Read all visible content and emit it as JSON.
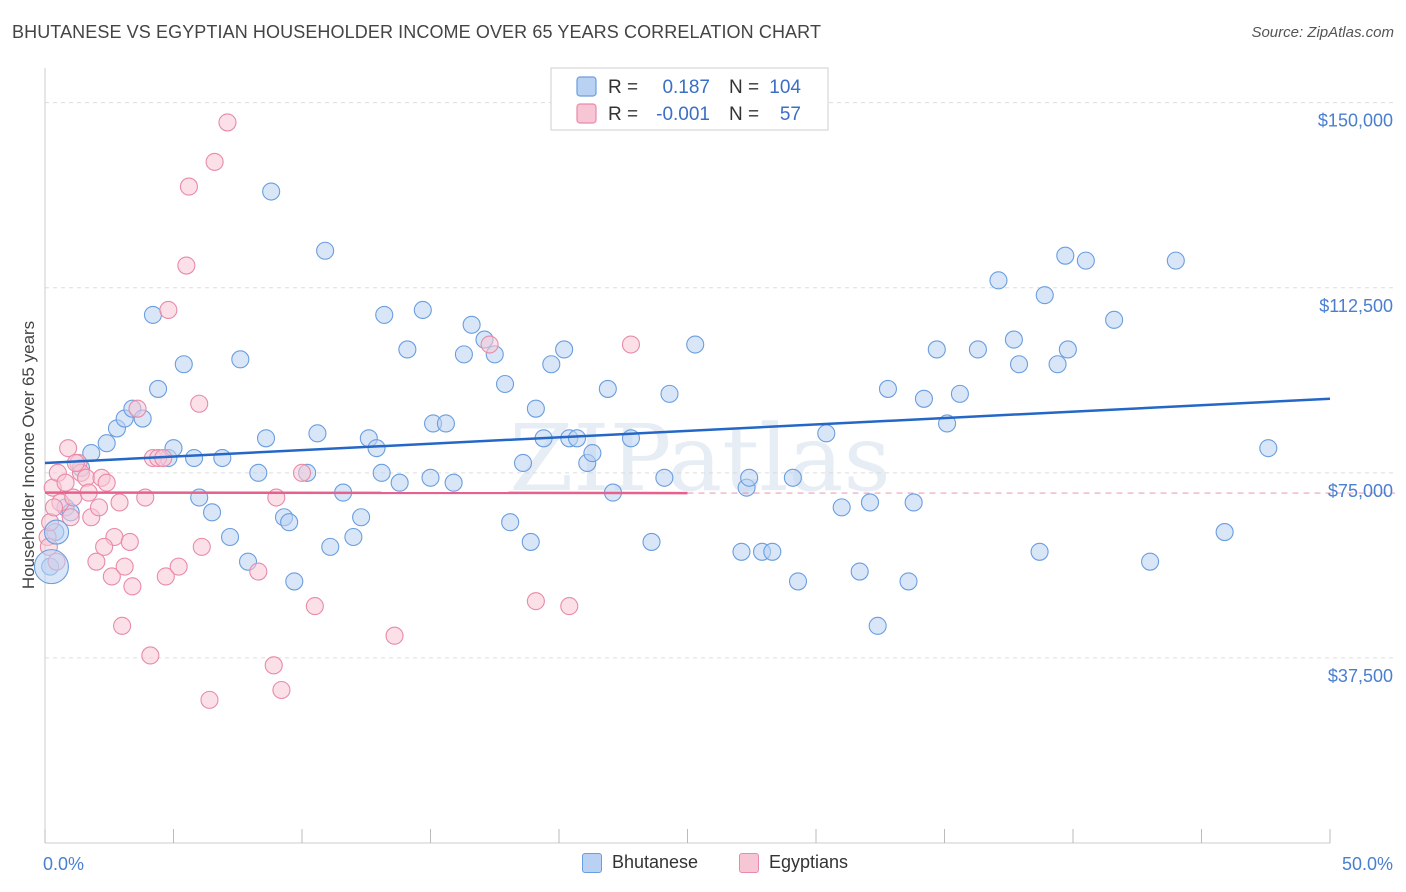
{
  "title": "BHUTANESE VS EGYPTIAN HOUSEHOLDER INCOME OVER 65 YEARS CORRELATION CHART",
  "source": "Source: ZipAtlas.com",
  "watermark": "ZIPatlas",
  "colors": {
    "blue": "#6a9ee0",
    "blue_fill": "#b9d2f3",
    "blue_line": "#2467c6",
    "pink": "#e98aa8",
    "pink_fill": "#f7c6d5",
    "pink_line": "#e5628e",
    "axis_text": "#4a7fd0",
    "grid": "#dddddd"
  },
  "legend": {
    "rows": [
      {
        "r_label": "R =",
        "r_value": "0.187",
        "n_label": "N =",
        "n_value": "104"
      },
      {
        "r_label": "R =",
        "r_value": "-0.001",
        "n_label": "N =",
        "n_value": "57"
      }
    ]
  },
  "bottom_legend": [
    "Bhutanese",
    "Egyptians"
  ],
  "chart_data": {
    "type": "scatter",
    "title": "BHUTANESE VS EGYPTIAN HOUSEHOLDER INCOME OVER 65 YEARS CORRELATION CHART",
    "xlabel": "",
    "ylabel": "Householder Income Over 65 years",
    "xlim": [
      0,
      50
    ],
    "ylim": [
      0,
      155000
    ],
    "x_tick_labels": [
      "0.0%",
      "50.0%"
    ],
    "y_ticks": [
      37500,
      75000,
      112500,
      150000
    ],
    "y_tick_labels": [
      "$37,500",
      "$75,000",
      "$112,500",
      "$150,000"
    ],
    "legend_position": "top-center",
    "grid": true,
    "series": [
      {
        "name": "Bhutanese",
        "color": "#6a9ee0",
        "trend": {
          "x": [
            0,
            50
          ],
          "y": [
            77000,
            90000
          ]
        },
        "points": [
          [
            0.2,
            56000
          ],
          [
            0.4,
            63000
          ],
          [
            0.8,
            68000
          ],
          [
            1.0,
            67000
          ],
          [
            1.4,
            76000
          ],
          [
            1.8,
            79000
          ],
          [
            2.4,
            81000
          ],
          [
            2.8,
            84000
          ],
          [
            3.1,
            86000
          ],
          [
            3.4,
            88000
          ],
          [
            3.8,
            86000
          ],
          [
            4.2,
            107000
          ],
          [
            4.4,
            92000
          ],
          [
            4.8,
            78000
          ],
          [
            5.0,
            80000
          ],
          [
            5.4,
            97000
          ],
          [
            5.8,
            78000
          ],
          [
            6.0,
            70000
          ],
          [
            6.5,
            67000
          ],
          [
            6.9,
            78000
          ],
          [
            7.2,
            62000
          ],
          [
            7.6,
            98000
          ],
          [
            7.9,
            57000
          ],
          [
            8.3,
            75000
          ],
          [
            8.6,
            82000
          ],
          [
            8.8,
            132000
          ],
          [
            9.3,
            66000
          ],
          [
            9.5,
            65000
          ],
          [
            9.7,
            53000
          ],
          [
            10.2,
            75000
          ],
          [
            10.6,
            83000
          ],
          [
            10.9,
            120000
          ],
          [
            11.1,
            60000
          ],
          [
            11.6,
            71000
          ],
          [
            12.0,
            62000
          ],
          [
            12.3,
            66000
          ],
          [
            12.6,
            82000
          ],
          [
            12.9,
            80000
          ],
          [
            13.1,
            75000
          ],
          [
            13.2,
            107000
          ],
          [
            13.8,
            73000
          ],
          [
            14.1,
            100000
          ],
          [
            14.7,
            108000
          ],
          [
            15.0,
            74000
          ],
          [
            15.1,
            85000
          ],
          [
            15.6,
            85000
          ],
          [
            15.9,
            73000
          ],
          [
            16.3,
            99000
          ],
          [
            16.6,
            105000
          ],
          [
            17.1,
            102000
          ],
          [
            17.5,
            99000
          ],
          [
            17.9,
            93000
          ],
          [
            18.1,
            65000
          ],
          [
            18.6,
            77000
          ],
          [
            18.9,
            61000
          ],
          [
            19.1,
            88000
          ],
          [
            19.4,
            82000
          ],
          [
            19.7,
            97000
          ],
          [
            20.2,
            100000
          ],
          [
            20.4,
            82000
          ],
          [
            20.7,
            82000
          ],
          [
            21.1,
            77000
          ],
          [
            21.3,
            79000
          ],
          [
            21.9,
            92000
          ],
          [
            22.1,
            71000
          ],
          [
            22.8,
            82000
          ],
          [
            23.6,
            61000
          ],
          [
            24.1,
            74000
          ],
          [
            24.3,
            91000
          ],
          [
            25.3,
            101000
          ],
          [
            27.1,
            59000
          ],
          [
            27.3,
            72000
          ],
          [
            27.4,
            74000
          ],
          [
            27.9,
            59000
          ],
          [
            28.3,
            59000
          ],
          [
            29.1,
            74000
          ],
          [
            29.3,
            53000
          ],
          [
            30.4,
            83000
          ],
          [
            31.0,
            68000
          ],
          [
            31.7,
            55000
          ],
          [
            32.1,
            69000
          ],
          [
            32.4,
            44000
          ],
          [
            32.8,
            92000
          ],
          [
            33.6,
            53000
          ],
          [
            33.8,
            69000
          ],
          [
            34.2,
            90000
          ],
          [
            34.7,
            100000
          ],
          [
            35.1,
            85000
          ],
          [
            35.6,
            91000
          ],
          [
            36.3,
            100000
          ],
          [
            37.1,
            114000
          ],
          [
            37.7,
            102000
          ],
          [
            37.9,
            97000
          ],
          [
            38.7,
            59000
          ],
          [
            38.9,
            111000
          ],
          [
            39.4,
            97000
          ],
          [
            39.7,
            119000
          ],
          [
            39.8,
            100000
          ],
          [
            40.5,
            118000
          ],
          [
            41.6,
            106000
          ],
          [
            44.0,
            118000
          ],
          [
            43.0,
            57000
          ],
          [
            45.9,
            63000
          ],
          [
            47.6,
            80000
          ]
        ]
      },
      {
        "name": "Egyptians",
        "color": "#e98aa8",
        "trend": {
          "x": [
            0,
            25
          ],
          "y": [
            71000,
            70900
          ]
        },
        "points": [
          [
            0.1,
            62000
          ],
          [
            0.2,
            65000
          ],
          [
            0.3,
            72000
          ],
          [
            0.5,
            75000
          ],
          [
            0.6,
            69000
          ],
          [
            0.8,
            73000
          ],
          [
            0.9,
            80000
          ],
          [
            1.0,
            66000
          ],
          [
            1.1,
            70000
          ],
          [
            1.3,
            77000
          ],
          [
            1.4,
            75000
          ],
          [
            1.6,
            74000
          ],
          [
            1.7,
            71000
          ],
          [
            1.8,
            66000
          ],
          [
            2.0,
            57000
          ],
          [
            2.1,
            68000
          ],
          [
            2.2,
            74000
          ],
          [
            2.4,
            73000
          ],
          [
            2.6,
            54000
          ],
          [
            2.7,
            62000
          ],
          [
            2.9,
            69000
          ],
          [
            3.0,
            44000
          ],
          [
            3.1,
            56000
          ],
          [
            3.3,
            61000
          ],
          [
            3.4,
            52000
          ],
          [
            3.6,
            88000
          ],
          [
            3.9,
            70000
          ],
          [
            4.1,
            38000
          ],
          [
            4.2,
            78000
          ],
          [
            4.4,
            78000
          ],
          [
            4.6,
            78000
          ],
          [
            4.7,
            54000
          ],
          [
            4.8,
            108000
          ],
          [
            5.2,
            56000
          ],
          [
            5.5,
            117000
          ],
          [
            5.6,
            133000
          ],
          [
            6.0,
            89000
          ],
          [
            6.1,
            60000
          ],
          [
            6.4,
            29000
          ],
          [
            6.6,
            138000
          ],
          [
            7.1,
            146000
          ],
          [
            8.3,
            55000
          ],
          [
            8.9,
            36000
          ],
          [
            9.0,
            70000
          ],
          [
            9.2,
            31000
          ],
          [
            10.0,
            75000
          ],
          [
            10.5,
            48000
          ],
          [
            13.6,
            42000
          ],
          [
            17.3,
            101000
          ],
          [
            19.1,
            49000
          ],
          [
            20.4,
            48000
          ],
          [
            22.8,
            101000
          ],
          [
            0.15,
            60000
          ],
          [
            0.35,
            68000
          ],
          [
            0.45,
            57000
          ],
          [
            1.2,
            77000
          ],
          [
            2.3,
            60000
          ]
        ]
      }
    ]
  }
}
